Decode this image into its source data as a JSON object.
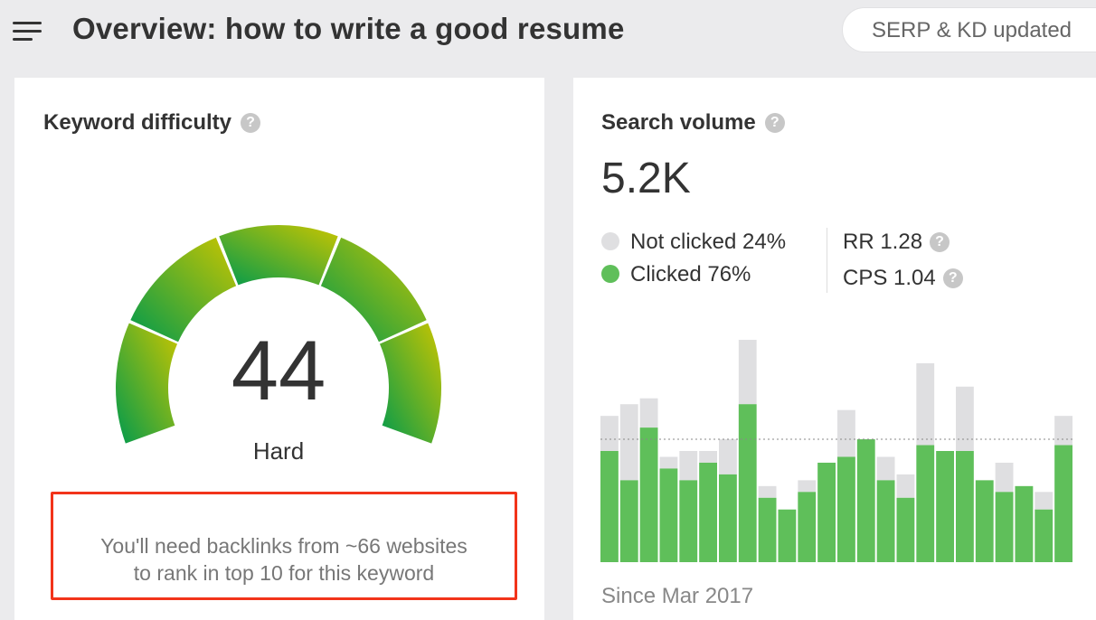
{
  "header": {
    "title": "Overview: how to write a good resume",
    "serp_status": "SERP & KD updated"
  },
  "keyword_difficulty": {
    "title": "Keyword difficulty",
    "help": "?",
    "score": "44",
    "score_value": 44,
    "label": "Hard",
    "backlinks_line1": "You'll need backlinks from ~66 websites",
    "backlinks_line2": "to rank in top 10 for this keyword",
    "colors": {
      "active_start": "#009a4d",
      "active_end": "#c9c500",
      "inactive": "#ebebed",
      "highlight": "#f2341a"
    }
  },
  "search_volume": {
    "title": "Search volume",
    "help": "?",
    "value": "5.2K",
    "not_clicked": "Not clicked 24%",
    "clicked": "Clicked 76%",
    "rr": "RR 1.28",
    "cps": "CPS 1.04",
    "since": "Since Mar 2017",
    "colors": {
      "not_clicked": "#dfdfe1",
      "clicked": "#5fbf5a"
    }
  },
  "chart_data": {
    "type": "bar",
    "stacked": true,
    "series": [
      {
        "name": "Clicked",
        "values": [
          114,
          84,
          138,
          96,
          84,
          102,
          90,
          162,
          66,
          54,
          72,
          102,
          108,
          126,
          84,
          66,
          120,
          114,
          114,
          84,
          72,
          78,
          54,
          120
        ]
      },
      {
        "name": "Not clicked",
        "values": [
          36,
          78,
          30,
          12,
          30,
          12,
          36,
          66,
          12,
          0,
          12,
          0,
          48,
          0,
          24,
          24,
          84,
          0,
          66,
          0,
          30,
          0,
          18,
          30
        ]
      }
    ],
    "reference_line": 126,
    "ylim": [
      0,
      228
    ],
    "grid": false,
    "legend": "top-left"
  }
}
